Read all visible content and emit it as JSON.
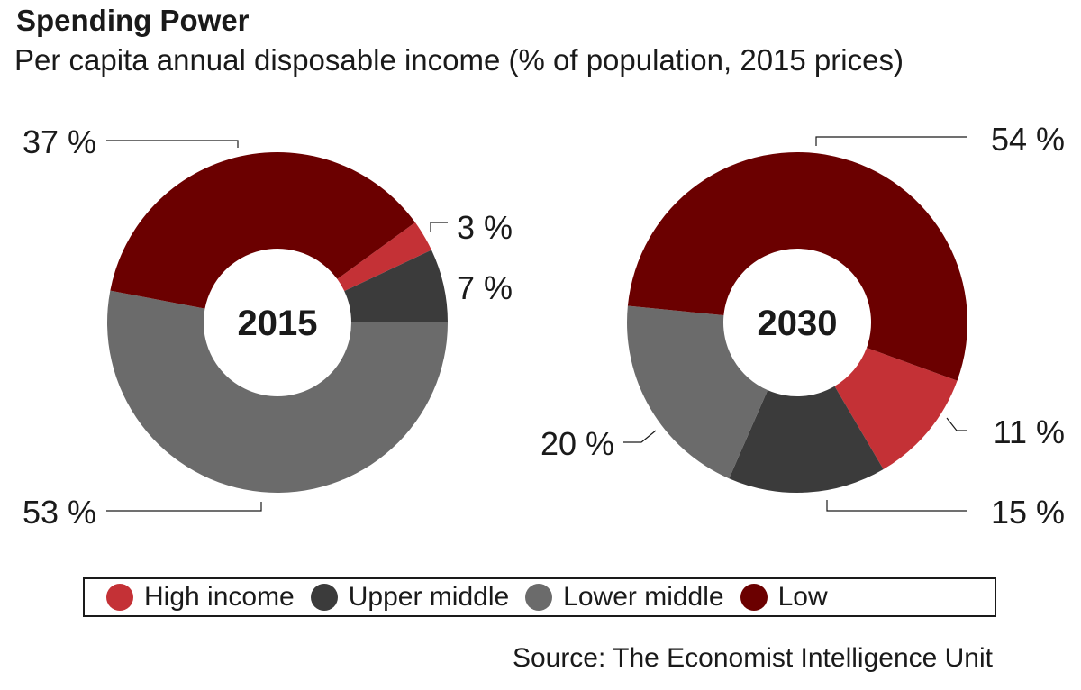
{
  "title": "Spending Power",
  "subtitle": "Per capita annual disposable income (% of population, 2015 prices)",
  "source": "Source: The Economist Intelligence Unit",
  "legend": [
    {
      "label": "High income",
      "color": "#c43136"
    },
    {
      "label": "Upper middle",
      "color": "#3b3b3b"
    },
    {
      "label": "Lower middle",
      "color": "#6b6b6b"
    },
    {
      "label": "Low",
      "color": "#6b0000"
    }
  ],
  "chart_data": [
    {
      "type": "pie",
      "donut": true,
      "center_label": "2015",
      "categories": [
        "High income",
        "Upper middle",
        "Lower middle",
        "Low"
      ],
      "values": [
        3,
        7,
        53,
        37
      ],
      "labels": [
        "3 %",
        "7 %",
        "53 %",
        "37 %"
      ]
    },
    {
      "type": "pie",
      "donut": true,
      "center_label": "2030",
      "categories": [
        "High income",
        "Upper middle",
        "Lower middle",
        "Low"
      ],
      "values": [
        11,
        15,
        20,
        54
      ],
      "labels": [
        "11 %",
        "15 %",
        "20 %",
        "54 %"
      ]
    }
  ]
}
